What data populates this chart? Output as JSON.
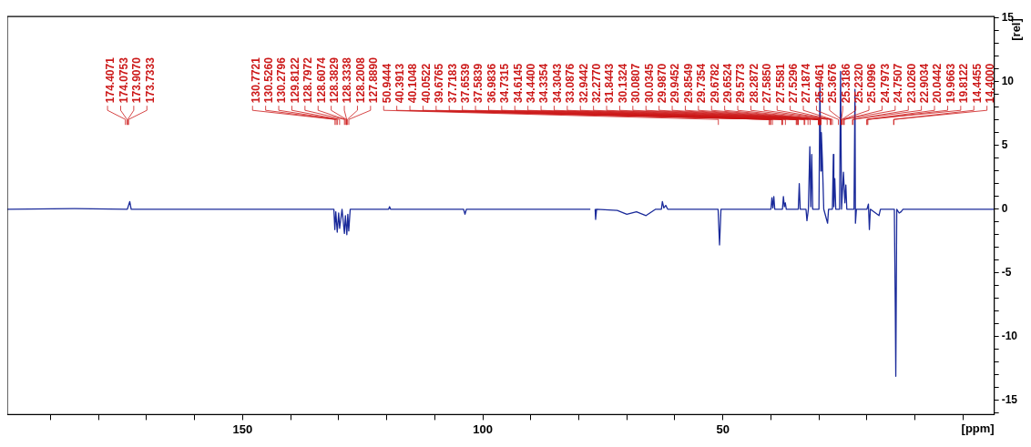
{
  "chart_data": {
    "type": "line",
    "xlabel": "[ppm]",
    "ylabel": "[rel]",
    "xlim": [
      199,
      -6.5
    ],
    "ylim": [
      -16.1,
      15.1
    ],
    "xticks": [
      {
        "value": 190,
        "label": null
      },
      {
        "value": 180,
        "label": null
      },
      {
        "value": 170,
        "label": null
      },
      {
        "value": 160,
        "label": null
      },
      150,
      {
        "value": 140,
        "label": null
      },
      {
        "value": 130,
        "label": null
      },
      {
        "value": 120,
        "label": null
      },
      {
        "value": 110,
        "label": null
      },
      100,
      {
        "value": 90,
        "label": null
      },
      {
        "value": 80,
        "label": null
      },
      {
        "value": 70,
        "label": null
      },
      {
        "value": 60,
        "label": null
      },
      50,
      {
        "value": 40,
        "label": null
      },
      {
        "value": 30,
        "label": null
      },
      {
        "value": 20,
        "label": null
      },
      {
        "value": 10,
        "label": null
      },
      {
        "value": 0,
        "label": null
      }
    ],
    "yticks": [
      {
        "value": -16,
        "label": null
      },
      -15,
      {
        "value": -14,
        "label": null
      },
      {
        "value": -13,
        "label": null
      },
      {
        "value": -12,
        "label": null
      },
      {
        "value": -11,
        "label": null
      },
      -10,
      {
        "value": -9,
        "label": null
      },
      {
        "value": -8,
        "label": null
      },
      {
        "value": -7,
        "label": null
      },
      {
        "value": -6,
        "label": null
      },
      -5,
      {
        "value": -4,
        "label": null
      },
      {
        "value": -3,
        "label": null
      },
      {
        "value": -2,
        "label": null
      },
      {
        "value": -1,
        "label": null
      },
      0,
      {
        "value": 1,
        "label": null
      },
      {
        "value": 2,
        "label": null
      },
      {
        "value": 3,
        "label": null
      },
      {
        "value": 4,
        "label": null
      },
      5,
      {
        "value": 6,
        "label": null
      },
      {
        "value": 7,
        "label": null
      },
      {
        "value": 8,
        "label": null
      },
      {
        "value": 9,
        "label": null
      },
      10,
      {
        "value": 11,
        "label": null
      },
      {
        "value": 12,
        "label": null
      },
      {
        "value": 13,
        "label": null
      },
      {
        "value": 14,
        "label": null
      },
      15
    ],
    "grid": false,
    "legend": false,
    "marker": "none",
    "line_style": "solid",
    "series": [
      {
        "color": "#1a2a9a",
        "x": [
          199,
          185,
          174.0,
          173.5,
          173.2,
          160,
          131.0,
          130.8,
          130.6,
          130.3,
          130.0,
          129.8,
          129.3,
          128.8,
          128.6,
          128.3,
          128.1,
          127.9,
          127.6,
          119.6,
          119.4,
          119.2,
          104.0,
          103.7,
          103.4,
          77.6,
          77.3,
          77.0,
          76.9,
          76.6,
          76.5,
          76.3,
          72,
          70,
          68,
          66,
          64,
          62.8,
          62.6,
          62.3,
          61.9,
          61.5,
          51,
          50.7,
          50.4,
          40.0,
          39.8,
          39.6,
          39.4,
          39.2,
          37.6,
          37.4,
          37.2,
          37.0,
          36.8,
          34.3,
          34.1,
          33.9,
          32.7,
          32.5,
          32.2,
          31.9,
          31.7,
          31.5,
          31.3,
          30.0,
          29.8,
          29.6,
          29.5,
          29.3,
          29.0,
          28.2,
          28.0,
          27.2,
          27.0,
          26.9,
          26.7,
          26.5,
          25.7,
          25.5,
          25.3,
          24.9,
          24.6,
          24.4,
          24.2,
          22.7,
          22.5,
          22.4,
          22.2,
          20.0,
          19.7,
          19.5,
          19.3,
          17.5,
          17.2,
          14.3,
          14.1,
          14.0,
          13.8,
          13.3,
          12.9,
          12.5,
          -6.5
        ],
        "values": [
          0,
          0.05,
          0,
          0.6,
          0,
          0,
          0,
          -1.6,
          -0.2,
          -1.8,
          -0.3,
          -1.5,
          0,
          -1.9,
          -0.5,
          -2.0,
          -0.4,
          -1.7,
          0,
          0,
          0.2,
          0,
          0,
          -0.4,
          0,
          0,
          null,
          0,
          null,
          0,
          -0.8,
          0,
          -0.1,
          -0.4,
          -0.2,
          -0.5,
          0,
          0,
          0.6,
          0.1,
          0.3,
          0,
          0,
          -2.8,
          0,
          0,
          0.9,
          0.1,
          1.0,
          0,
          0,
          1.0,
          0.2,
          0.5,
          0,
          0,
          2.0,
          0,
          0,
          -0.9,
          0,
          4.9,
          0.2,
          4.3,
          0,
          0,
          9.8,
          3.0,
          6.0,
          4.0,
          0,
          -1.1,
          0,
          0,
          4.3,
          0.2,
          2.4,
          0,
          0,
          10.8,
          0,
          2.9,
          0.5,
          1.9,
          0,
          0,
          9.4,
          -1.1,
          0,
          0,
          0.4,
          -1.6,
          0,
          -0.5,
          0,
          0,
          -8.0,
          -13.1,
          0,
          -0.3,
          -0.2,
          0,
          0
        ]
      }
    ],
    "annotations": [
      {
        "text": "174.4071",
        "x": 174.4071
      },
      {
        "text": "174.0753",
        "x": 174.0753
      },
      {
        "text": "173.9070",
        "x": 173.907
      },
      {
        "text": "173.7333",
        "x": 173.7333
      },
      {
        "text": "130.7721",
        "x": 130.7721
      },
      {
        "text": "130.5260",
        "x": 130.526
      },
      {
        "text": "130.2796",
        "x": 130.2796
      },
      {
        "text": "129.8122",
        "x": 129.8122
      },
      {
        "text": "128.7972",
        "x": 128.7972
      },
      {
        "text": "128.6074",
        "x": 128.6074
      },
      {
        "text": "128.3829",
        "x": 128.3829
      },
      {
        "text": "128.3338",
        "x": 128.3338
      },
      {
        "text": "128.2008",
        "x": 128.2008
      },
      {
        "text": "127.8890",
        "x": 127.889
      },
      {
        "text": "50.9444",
        "x": 50.9444
      },
      {
        "text": "40.3913",
        "x": 40.3913
      },
      {
        "text": "40.1048",
        "x": 40.1048
      },
      {
        "text": "40.0522",
        "x": 40.0522
      },
      {
        "text": "39.6765",
        "x": 39.6765
      },
      {
        "text": "37.7183",
        "x": 37.7183
      },
      {
        "text": "37.6539",
        "x": 37.6539
      },
      {
        "text": "37.5839",
        "x": 37.5839
      },
      {
        "text": "36.9836",
        "x": 36.9836
      },
      {
        "text": "34.7315",
        "x": 34.7315
      },
      {
        "text": "34.6145",
        "x": 34.6145
      },
      {
        "text": "34.4400",
        "x": 34.44
      },
      {
        "text": "34.3354",
        "x": 34.3354
      },
      {
        "text": "34.3043",
        "x": 34.3043
      },
      {
        "text": "33.0876",
        "x": 33.0876
      },
      {
        "text": "32.9442",
        "x": 32.9442
      },
      {
        "text": "32.2770",
        "x": 32.277
      },
      {
        "text": "31.8443",
        "x": 31.8443
      },
      {
        "text": "30.1324",
        "x": 30.1324
      },
      {
        "text": "30.0807",
        "x": 30.0807
      },
      {
        "text": "30.0345",
        "x": 30.0345
      },
      {
        "text": "29.9870",
        "x": 29.987
      },
      {
        "text": "29.9452",
        "x": 29.9452
      },
      {
        "text": "29.8549",
        "x": 29.8549
      },
      {
        "text": "29.7354",
        "x": 29.7354
      },
      {
        "text": "29.6782",
        "x": 29.6782
      },
      {
        "text": "29.6524",
        "x": 29.6524
      },
      {
        "text": "29.5773",
        "x": 29.5773
      },
      {
        "text": "28.2872",
        "x": 28.2872
      },
      {
        "text": "27.5850",
        "x": 27.585
      },
      {
        "text": "27.5581",
        "x": 27.5581
      },
      {
        "text": "27.5296",
        "x": 27.5296
      },
      {
        "text": "27.1874",
        "x": 27.1874
      },
      {
        "text": "25.9461",
        "x": 25.9461
      },
      {
        "text": "25.3676",
        "x": 25.3676
      },
      {
        "text": "25.3186",
        "x": 25.3186
      },
      {
        "text": "25.2320",
        "x": 25.232
      },
      {
        "text": "25.0996",
        "x": 25.0996
      },
      {
        "text": "24.7973",
        "x": 24.7973
      },
      {
        "text": "24.7507",
        "x": 24.7507
      },
      {
        "text": "23.0260",
        "x": 23.026
      },
      {
        "text": "22.9034",
        "x": 22.9034
      },
      {
        "text": "20.0442",
        "x": 20.0442
      },
      {
        "text": "19.9663",
        "x": 19.9663
      },
      {
        "text": "19.8122",
        "x": 19.8122
      },
      {
        "text": "14.4455",
        "x": 14.4455
      },
      {
        "text": "14.4000",
        "x": 14.4
      }
    ]
  }
}
